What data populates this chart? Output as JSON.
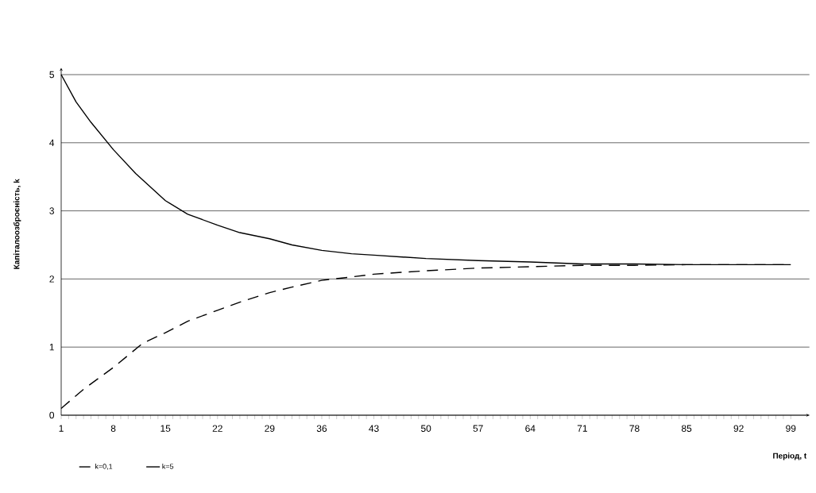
{
  "chart_data": {
    "type": "line",
    "xlabel": "Період, t",
    "ylabel": "Капіталоозброєність, k",
    "xlim": [
      1,
      101.5
    ],
    "ylim": [
      0,
      5.1
    ],
    "xticks": [
      1,
      8,
      15,
      22,
      29,
      36,
      43,
      50,
      57,
      64,
      71,
      78,
      85,
      92,
      99
    ],
    "yticks": [
      0,
      1,
      2,
      3,
      4,
      5
    ],
    "grid": "y",
    "legend": "bottom left",
    "series": [
      {
        "name": "k=0,1",
        "color": "#000000",
        "line_style": "dashed",
        "x": [
          1,
          4,
          8,
          12,
          15,
          18,
          22,
          25,
          29,
          32,
          36,
          40,
          43,
          47,
          50,
          57,
          64,
          71,
          78,
          85,
          92,
          99
        ],
        "values": [
          0.1,
          0.38,
          0.7,
          1.06,
          1.21,
          1.38,
          1.54,
          1.66,
          1.8,
          1.88,
          1.98,
          2.03,
          2.07,
          2.1,
          2.12,
          2.16,
          2.18,
          2.2,
          2.2,
          2.21,
          2.21,
          2.21
        ]
      },
      {
        "name": "k=5",
        "color": "#000000",
        "line_style": "solid",
        "x": [
          1,
          3,
          5,
          8,
          11,
          15,
          18,
          22,
          25,
          29,
          32,
          36,
          40,
          43,
          50,
          57,
          64,
          71,
          78,
          85,
          92,
          99
        ],
        "values": [
          5,
          4.6,
          4.3,
          3.9,
          3.55,
          3.15,
          2.95,
          2.79,
          2.68,
          2.59,
          2.5,
          2.42,
          2.37,
          2.35,
          2.3,
          2.27,
          2.25,
          2.22,
          2.22,
          2.21,
          2.21,
          2.21
        ]
      }
    ]
  }
}
